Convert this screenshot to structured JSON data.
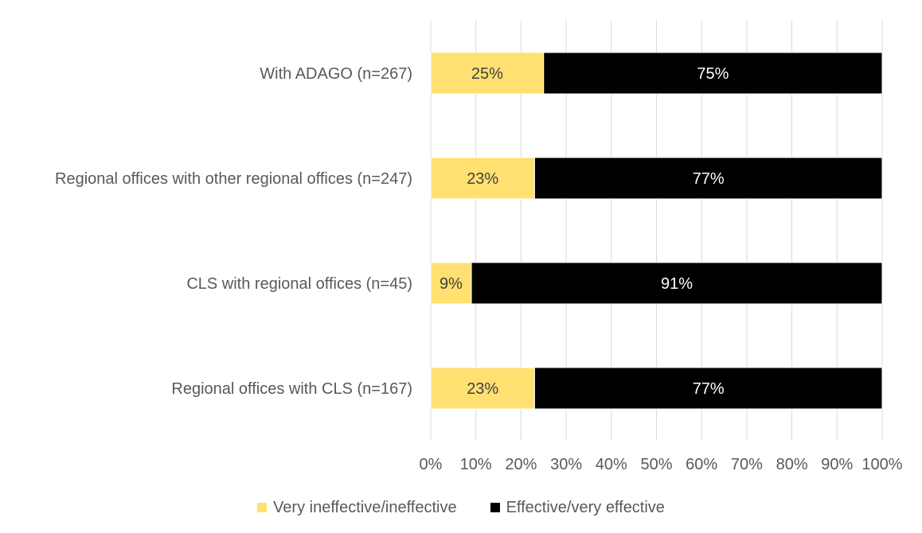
{
  "chart_data": {
    "type": "bar",
    "orientation": "horizontal",
    "stacked": "percent",
    "categories": [
      "With ADAGO (n=267)",
      "Regional offices with other regional offices (n=247)",
      "CLS with regional offices (n=45)",
      "Regional offices with CLS (n=167)"
    ],
    "series": [
      {
        "name": "Very ineffective/ineffective",
        "color": "#FFE070",
        "label_color": "#404040",
        "values": [
          25,
          23,
          9,
          23
        ],
        "labels": [
          "25%",
          "23%",
          "9%",
          "23%"
        ]
      },
      {
        "name": "Effective/very effective",
        "color": "#000000",
        "label_color": "#ffffff",
        "values": [
          75,
          77,
          91,
          77
        ],
        "labels": [
          "75%",
          "77%",
          "91%",
          "77%"
        ]
      }
    ],
    "xlim": [
      0,
      100
    ],
    "xticks": [
      "0%",
      "10%",
      "20%",
      "30%",
      "40%",
      "50%",
      "60%",
      "70%",
      "80%",
      "90%",
      "100%"
    ],
    "grid": "vertical",
    "legend_position": "bottom"
  }
}
